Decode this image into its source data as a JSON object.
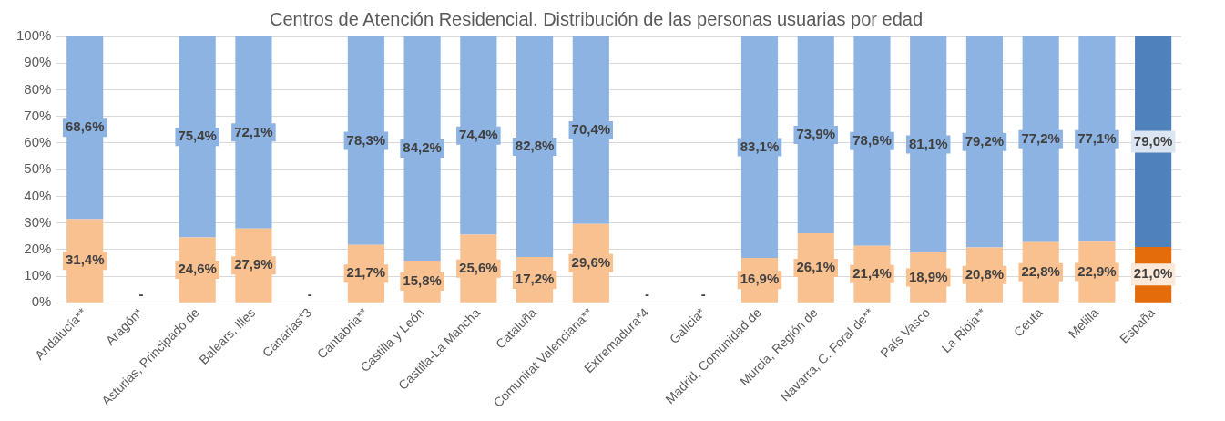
{
  "chart_data": {
    "type": "bar",
    "stacked": true,
    "title": "Centros de Atención Residencial. Distribución de las personas usuarias por edad",
    "categories": [
      "Andalucía**",
      "Aragón*",
      "Asturias, Principado de",
      "Balears, Illes",
      "Canarias*3",
      "Cantabria**",
      "Castilla y León",
      "Castilla-La Mancha",
      "Cataluña",
      "Comunitat Valenciana**",
      "Extremadura*4",
      "Galicia*",
      "Madrid, Comunidad de",
      "Murcia, Región de",
      "Navarra, C. Foral de**",
      "País Vasco",
      "La Rioja**",
      "Ceuta",
      "Melilla",
      "España"
    ],
    "series": [
      {
        "colors": [
          "#f9c090",
          "#f9c090",
          "#f9c090",
          "#f9c090",
          "#f9c090",
          "#f9c090",
          "#f9c090",
          "#f9c090",
          "#f9c090",
          "#f9c090",
          "#f9c090",
          "#f9c090",
          "#f9c090",
          "#f9c090",
          "#f9c090",
          "#f9c090",
          "#f9c090",
          "#f9c090",
          "#f9c090",
          "#e46c0a"
        ],
        "values": [
          31.4,
          null,
          24.6,
          27.9,
          null,
          21.7,
          15.8,
          25.6,
          17.2,
          29.6,
          null,
          null,
          16.9,
          26.1,
          21.4,
          18.9,
          20.8,
          22.8,
          22.9,
          21.0
        ],
        "value_labels": [
          "31,4%",
          "-",
          "24,6%",
          "27,9%",
          "-",
          "21,7%",
          "15,8%",
          "25,6%",
          "17,2%",
          "29,6%",
          "-",
          "-",
          "16,9%",
          "26,1%",
          "21,4%",
          "18,9%",
          "20,8%",
          "22,8%",
          "22,9%",
          "21,0%"
        ]
      },
      {
        "colors": [
          "#8db3e2",
          "#8db3e2",
          "#8db3e2",
          "#8db3e2",
          "#8db3e2",
          "#8db3e2",
          "#8db3e2",
          "#8db3e2",
          "#8db3e2",
          "#8db3e2",
          "#8db3e2",
          "#8db3e2",
          "#8db3e2",
          "#8db3e2",
          "#8db3e2",
          "#8db3e2",
          "#8db3e2",
          "#8db3e2",
          "#8db3e2",
          "#4f81bd"
        ],
        "values": [
          68.6,
          null,
          75.4,
          72.1,
          null,
          78.3,
          84.2,
          74.4,
          82.8,
          70.4,
          null,
          null,
          83.1,
          73.9,
          78.6,
          81.1,
          79.2,
          77.2,
          77.1,
          79.0
        ],
        "value_labels": [
          "68,6%",
          null,
          "75,4%",
          "72,1%",
          null,
          "78,3%",
          "84,2%",
          "74,4%",
          "82,8%",
          "70,4%",
          null,
          null,
          "83,1%",
          "73,9%",
          "78,6%",
          "81,1%",
          "79,2%",
          "77,2%",
          "77,1%",
          "79,0%"
        ]
      }
    ],
    "ylim": [
      0,
      100
    ],
    "yticks": [
      {
        "value": 0,
        "label": "0%"
      },
      {
        "value": 10,
        "label": "10%"
      },
      {
        "value": 20,
        "label": "20%"
      },
      {
        "value": 30,
        "label": "30%"
      },
      {
        "value": 40,
        "label": "40%"
      },
      {
        "value": 50,
        "label": "50%"
      },
      {
        "value": 60,
        "label": "60%"
      },
      {
        "value": 70,
        "label": "70%"
      },
      {
        "value": 80,
        "label": "80%"
      },
      {
        "value": 90,
        "label": "90%"
      },
      {
        "value": 100,
        "label": "100%"
      }
    ],
    "grid": "y",
    "legend": false
  }
}
